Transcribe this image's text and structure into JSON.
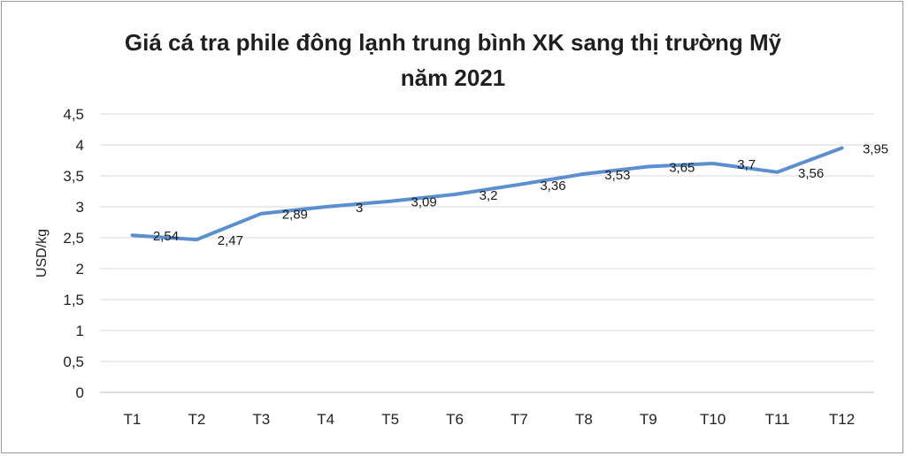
{
  "chart_data": {
    "type": "line",
    "title": "Giá cá tra phile đông lạnh trung bình XK sang thị trường Mỹ",
    "subtitle": "năm 2021",
    "xlabel": "",
    "ylabel": "USD/kg",
    "categories": [
      "T1",
      "T2",
      "T3",
      "T4",
      "T5",
      "T6",
      "T7",
      "T8",
      "T9",
      "T10",
      "T11",
      "T12"
    ],
    "series": [
      {
        "values": [
          2.54,
          2.47,
          2.89,
          3.0,
          3.09,
          3.2,
          3.36,
          3.53,
          3.65,
          3.7,
          3.56,
          3.95
        ],
        "labels": [
          "2,54",
          "2,47",
          "2,89",
          "3",
          "3,09",
          "3,2",
          "3,36",
          "3,53",
          "3,65",
          "3,7",
          "3,56",
          "3,95"
        ]
      }
    ],
    "ylim": [
      0,
      4.5
    ],
    "yticks": [
      "0",
      "0,5",
      "1",
      "1,5",
      "2",
      "2,5",
      "3",
      "3,5",
      "4",
      "4,5"
    ],
    "grid": true,
    "legend": "none",
    "colors": {
      "line": "#5b8fcf",
      "grid": "#d9d9d9",
      "axis": "#bfbfbf"
    }
  }
}
